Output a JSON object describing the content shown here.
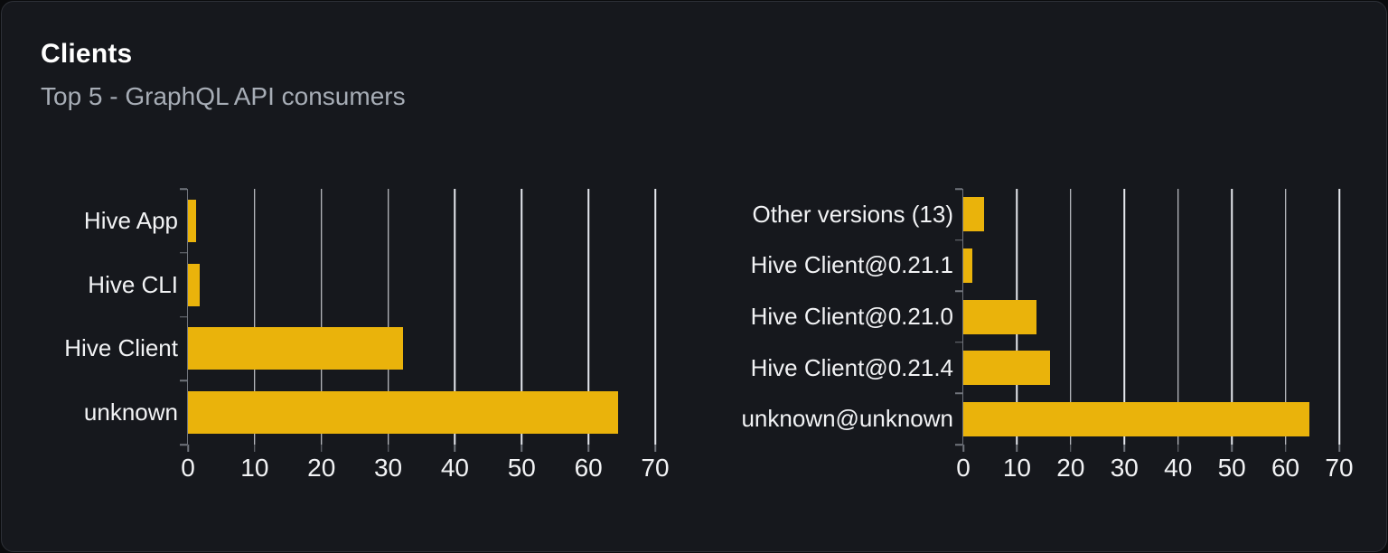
{
  "card": {
    "title": "Clients",
    "subtitle": "Top 5 - GraphQL API consumers"
  },
  "colors": {
    "page_background": "#0a0b0d",
    "card_background": "#16181d",
    "card_border": "#2d3037",
    "bar": "#eab30b",
    "gridline": "#e5e8ee",
    "axis": "#70747c",
    "title_text": "#ffffff",
    "subtitle_text": "#a7adb6",
    "label_text": "#f2f3f5"
  },
  "chart_data": [
    {
      "type": "bar",
      "orientation": "horizontal",
      "title": "",
      "categories": [
        "Hive App",
        "Hive CLI",
        "Hive Client",
        "unknown"
      ],
      "values": [
        1.2,
        1.8,
        32.2,
        64.4
      ],
      "xlabel": "",
      "ylabel": "",
      "xlim": [
        0,
        70
      ],
      "xticks": [
        0,
        10,
        20,
        30,
        40,
        50,
        60,
        70
      ],
      "grid": true,
      "legend": false,
      "bar_color": "#eab30b"
    },
    {
      "type": "bar",
      "orientation": "horizontal",
      "title": "",
      "categories": [
        "Other versions (13)",
        "Hive Client@0.21.1",
        "Hive Client@0.21.0",
        "Hive Client@0.21.4",
        "unknown@unknown"
      ],
      "values": [
        3.8,
        1.6,
        13.6,
        16.2,
        64.4
      ],
      "xlabel": "",
      "ylabel": "",
      "xlim": [
        0,
        70
      ],
      "xticks": [
        0,
        10,
        20,
        30,
        40,
        50,
        60,
        70
      ],
      "grid": true,
      "legend": false,
      "bar_color": "#eab30b"
    }
  ]
}
